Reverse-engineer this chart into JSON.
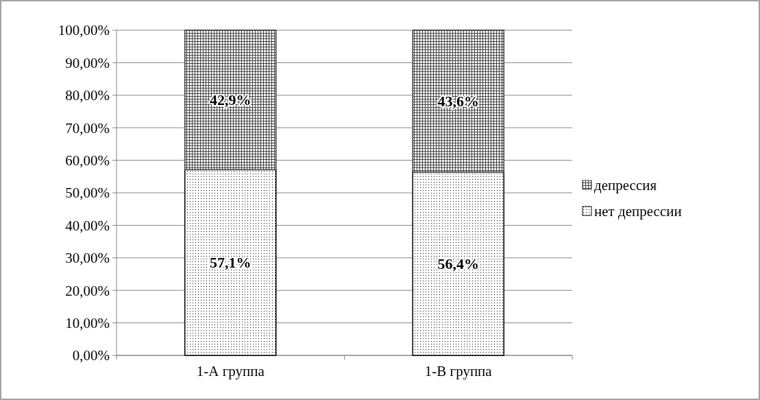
{
  "chart_data": {
    "type": "bar",
    "stacked": true,
    "categories": [
      "1-А группа",
      "1-В группа"
    ],
    "series": [
      {
        "name": "нет депрессии",
        "color": "#000000",
        "values": [
          57.1,
          56.4
        ],
        "value_labels": [
          "57,1%",
          "56,4%"
        ]
      },
      {
        "name": "депрессия",
        "color": "#404040",
        "values": [
          42.9,
          43.6
        ],
        "value_labels": [
          "42,9%",
          "43,6%"
        ]
      }
    ],
    "ylim": [
      0,
      100
    ],
    "yticks": [
      {
        "value": 0,
        "label": "0,00%"
      },
      {
        "value": 10,
        "label": "10,00%"
      },
      {
        "value": 20,
        "label": "20,00%"
      },
      {
        "value": 30,
        "label": "30,00%"
      },
      {
        "value": 40,
        "label": "40,00%"
      },
      {
        "value": 50,
        "label": "50,00%"
      },
      {
        "value": 60,
        "label": "60,00%"
      },
      {
        "value": 70,
        "label": "70,00%"
      },
      {
        "value": 80,
        "label": "80,00%"
      },
      {
        "value": 90,
        "label": "90,00%"
      },
      {
        "value": 100,
        "label": "100,00%"
      }
    ],
    "grid": "y",
    "legend": "right"
  }
}
